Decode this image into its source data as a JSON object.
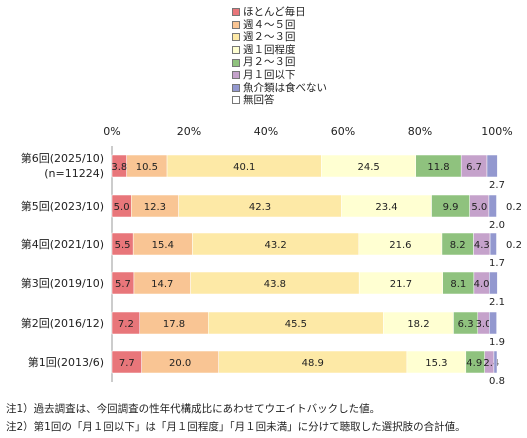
{
  "chart_data": {
    "type": "bar",
    "orientation": "horizontal",
    "stacked": true,
    "xlim": [
      0,
      100
    ],
    "xticks": [
      "0%",
      "20%",
      "40%",
      "60%",
      "80%",
      "100%"
    ],
    "grid": false,
    "legend_position": "top-center",
    "categories": [
      [
        "第6回(2025/10)",
        "(n=11224)"
      ],
      [
        "第5回(2023/10)"
      ],
      [
        "第4回(2021/10)"
      ],
      [
        "第3回(2019/10)"
      ],
      [
        "第2回(2016/12)"
      ],
      [
        "第1回(2013/6)"
      ]
    ],
    "series": [
      {
        "name": "ほとんど毎日",
        "color": "#e8767a",
        "values": [
          3.8,
          5.0,
          5.5,
          5.7,
          7.2,
          7.7
        ]
      },
      {
        "name": "週４～５回",
        "color": "#f9c594",
        "values": [
          10.5,
          12.3,
          15.4,
          14.7,
          17.8,
          20.0
        ]
      },
      {
        "name": "週２～３回",
        "color": "#fde9a6",
        "values": [
          40.1,
          42.3,
          43.2,
          43.8,
          45.5,
          48.9
        ]
      },
      {
        "name": "週１回程度",
        "color": "#ffffd2",
        "values": [
          24.5,
          23.4,
          21.6,
          21.7,
          18.2,
          15.3
        ]
      },
      {
        "name": "月２～３回",
        "color": "#8fc27e",
        "values": [
          11.8,
          9.9,
          8.2,
          8.1,
          6.3,
          4.9
        ]
      },
      {
        "name": "月１回以下",
        "color": "#c5a2cb",
        "values": [
          6.7,
          5.0,
          4.3,
          4.0,
          3.0,
          2.4
        ]
      },
      {
        "name": "魚介類は食べない",
        "color": "#9398cf",
        "values": [
          2.7,
          2.0,
          1.7,
          2.1,
          1.9,
          0.8
        ]
      },
      {
        "name": "無回答",
        "color": "#ffffff",
        "values": [
          0,
          0.2,
          0.2,
          0,
          0,
          0
        ]
      }
    ],
    "labels": [
      [
        "3.8",
        "10.5",
        "40.1",
        "24.5",
        "11.8",
        "6.7",
        "2.7",
        ""
      ],
      [
        "5.0",
        "12.3",
        "42.3",
        "23.4",
        "9.9",
        "5.0",
        "2.0",
        "0.2"
      ],
      [
        "5.5",
        "15.4",
        "43.2",
        "21.6",
        "8.2",
        "4.3",
        "1.7",
        "0.2"
      ],
      [
        "5.7",
        "14.7",
        "43.8",
        "21.7",
        "8.1",
        "4.0",
        "2.1",
        ""
      ],
      [
        "7.2",
        "17.8",
        "45.5",
        "18.2",
        "6.3",
        "3.0",
        "1.9",
        ""
      ],
      [
        "7.7",
        "20.0",
        "48.9",
        "15.3",
        "4.9",
        "2.4",
        "0.8",
        ""
      ]
    ]
  },
  "notes": [
    "注1）過去調査は、今回調査の性年代構成比にあわせてウエイトバックした値。",
    "注2）第1回の「月１回以下」は「月１回程度」「月１回未満」に分けて聴取した選択肢の合計値。"
  ]
}
